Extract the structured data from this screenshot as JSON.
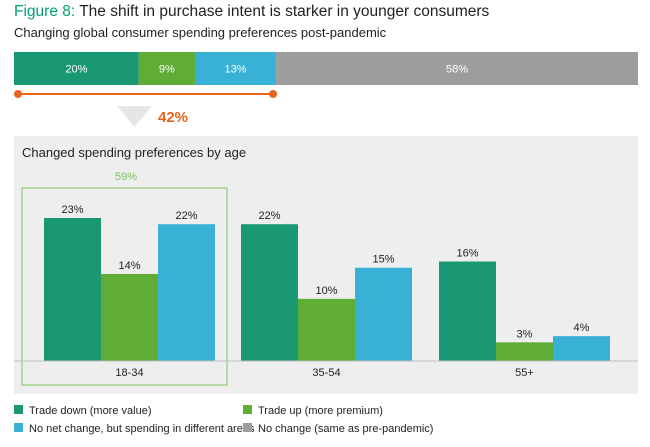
{
  "figure": {
    "number": "Figure 8:",
    "title": "The shift in purchase intent is starker in younger consumers",
    "subtitle": "Changing global consumer spending preferences post-pandemic"
  },
  "colors": {
    "trade_down": "#1a9773",
    "trade_up": "#5fad35",
    "no_net_change": "#39b0d5",
    "no_change": "#9d9d9d",
    "accent_orange": "#e8641c",
    "panel_bg": "#eeeeee",
    "highlight_green": "#7dc35c"
  },
  "chart_data": [
    {
      "type": "bar",
      "orientation": "horizontal-stacked",
      "series": [
        {
          "name": "Trade down (more value)",
          "values": [
            20
          ],
          "label": "20%"
        },
        {
          "name": "Trade up (more premium)",
          "values": [
            9
          ],
          "label": "9%"
        },
        {
          "name": "No net change, but spending in different areas",
          "values": [
            13
          ],
          "label": "13%"
        },
        {
          "name": "No change (same as pre-pandemic)",
          "values": [
            58
          ],
          "label": "58%"
        }
      ],
      "bracket_total_label": "42%"
    },
    {
      "type": "bar",
      "title": "Changed spending preferences by age",
      "categories": [
        "18-34",
        "35-54",
        "55+"
      ],
      "series": [
        {
          "name": "Trade down (more value)",
          "values": [
            23,
            22,
            16
          ],
          "labels": [
            "23%",
            "22%",
            "16%"
          ]
        },
        {
          "name": "Trade up (more premium)",
          "values": [
            14,
            10,
            3
          ],
          "labels": [
            "14%",
            "10%",
            "3%"
          ]
        },
        {
          "name": "No net change, but spending in different areas",
          "values": [
            22,
            15,
            4
          ],
          "labels": [
            "22%",
            "15%",
            "4%"
          ]
        }
      ],
      "highlight": {
        "category": "18-34",
        "label": "59%"
      },
      "ylim": [
        0,
        25
      ],
      "grid": false,
      "legend": {
        "placement": "bottom",
        "items": [
          {
            "key": "trade_down",
            "label": "Trade down (more value)"
          },
          {
            "key": "trade_up",
            "label": "Trade up (more premium)"
          },
          {
            "key": "no_net_change",
            "label": "No net change, but spending in different areas"
          },
          {
            "key": "no_change",
            "label": "No change (same as pre-pandemic)"
          }
        ]
      }
    }
  ]
}
